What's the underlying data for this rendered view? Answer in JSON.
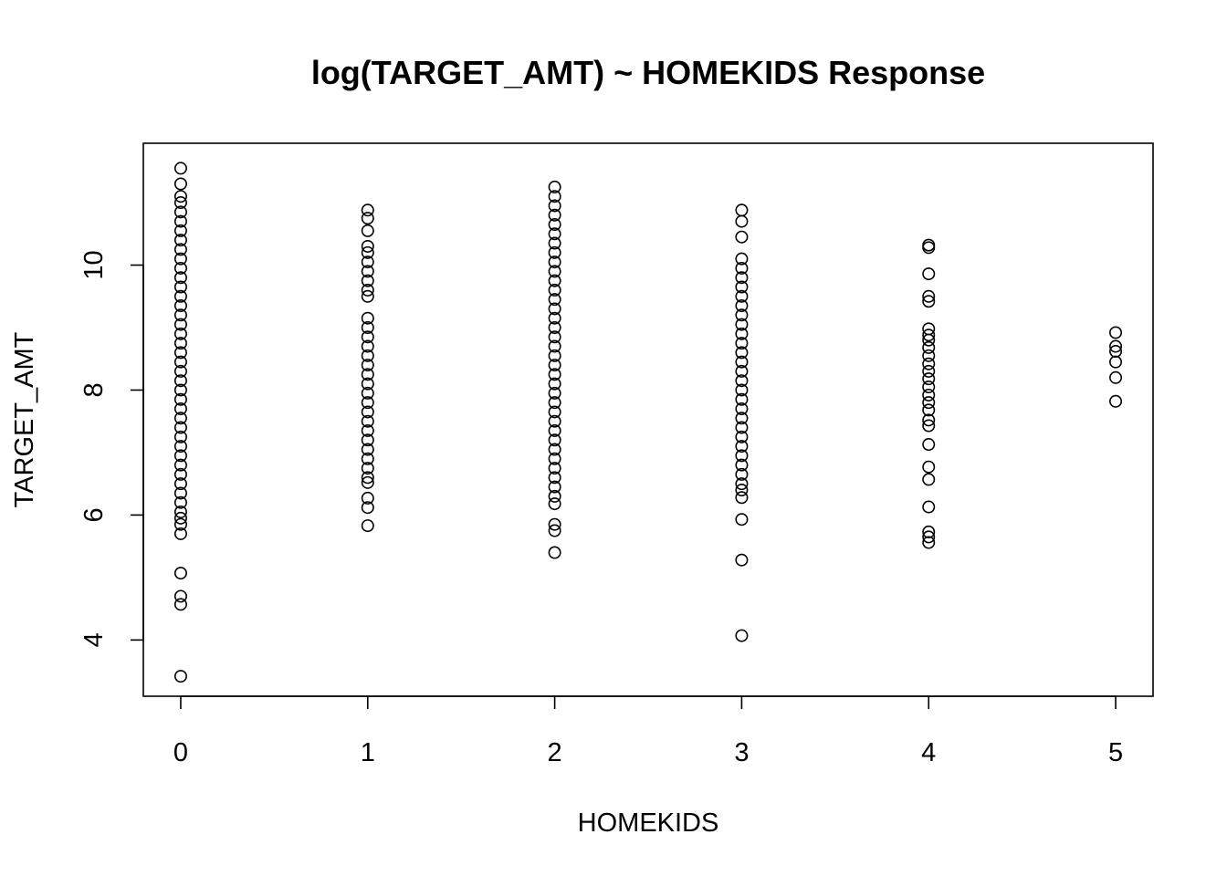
{
  "chart_data": {
    "type": "scatter",
    "title": "log(TARGET_AMT) ~ HOMEKIDS Response",
    "xlabel": "HOMEKIDS",
    "ylabel": "TARGET_AMT",
    "xlim": [
      -0.2,
      5.2
    ],
    "ylim": [
      3.1,
      11.95
    ],
    "xticks": [
      0,
      1,
      2,
      3,
      4,
      5
    ],
    "yticks": [
      4,
      6,
      8,
      10
    ],
    "grid": false,
    "series": [
      {
        "values": [
          {
            "x": 0,
            "y": 11.55
          },
          {
            "x": 0,
            "y": 11.3
          },
          {
            "x": 0,
            "y": 11.1
          },
          {
            "x": 0,
            "y": 11.0
          },
          {
            "x": 0,
            "y": 10.85
          },
          {
            "x": 0,
            "y": 10.7
          },
          {
            "x": 0,
            "y": 10.55
          },
          {
            "x": 0,
            "y": 10.4
          },
          {
            "x": 0,
            "y": 10.25
          },
          {
            "x": 0,
            "y": 10.1
          },
          {
            "x": 0,
            "y": 9.95
          },
          {
            "x": 0,
            "y": 9.8
          },
          {
            "x": 0,
            "y": 9.65
          },
          {
            "x": 0,
            "y": 9.5
          },
          {
            "x": 0,
            "y": 9.35
          },
          {
            "x": 0,
            "y": 9.2
          },
          {
            "x": 0,
            "y": 9.05
          },
          {
            "x": 0,
            "y": 8.9
          },
          {
            "x": 0,
            "y": 8.75
          },
          {
            "x": 0,
            "y": 8.6
          },
          {
            "x": 0,
            "y": 8.45
          },
          {
            "x": 0,
            "y": 8.3
          },
          {
            "x": 0,
            "y": 8.15
          },
          {
            "x": 0,
            "y": 8.0
          },
          {
            "x": 0,
            "y": 7.85
          },
          {
            "x": 0,
            "y": 7.7
          },
          {
            "x": 0,
            "y": 7.55
          },
          {
            "x": 0,
            "y": 7.4
          },
          {
            "x": 0,
            "y": 7.25
          },
          {
            "x": 0,
            "y": 7.1
          },
          {
            "x": 0,
            "y": 6.95
          },
          {
            "x": 0,
            "y": 6.8
          },
          {
            "x": 0,
            "y": 6.65
          },
          {
            "x": 0,
            "y": 6.5
          },
          {
            "x": 0,
            "y": 6.35
          },
          {
            "x": 0,
            "y": 6.2
          },
          {
            "x": 0,
            "y": 6.05
          },
          {
            "x": 0,
            "y": 5.95
          },
          {
            "x": 0,
            "y": 5.85
          },
          {
            "x": 0,
            "y": 5.7
          },
          {
            "x": 0,
            "y": 5.07
          },
          {
            "x": 0,
            "y": 4.7
          },
          {
            "x": 0,
            "y": 4.57
          },
          {
            "x": 0,
            "y": 3.42
          },
          {
            "x": 1,
            "y": 10.88
          },
          {
            "x": 1,
            "y": 10.75
          },
          {
            "x": 1,
            "y": 10.55
          },
          {
            "x": 1,
            "y": 10.3
          },
          {
            "x": 1,
            "y": 10.2
          },
          {
            "x": 1,
            "y": 10.05
          },
          {
            "x": 1,
            "y": 9.9
          },
          {
            "x": 1,
            "y": 9.75
          },
          {
            "x": 1,
            "y": 9.6
          },
          {
            "x": 1,
            "y": 9.5
          },
          {
            "x": 1,
            "y": 9.15
          },
          {
            "x": 1,
            "y": 9.0
          },
          {
            "x": 1,
            "y": 8.85
          },
          {
            "x": 1,
            "y": 8.7
          },
          {
            "x": 1,
            "y": 8.55
          },
          {
            "x": 1,
            "y": 8.4
          },
          {
            "x": 1,
            "y": 8.25
          },
          {
            "x": 1,
            "y": 8.1
          },
          {
            "x": 1,
            "y": 7.95
          },
          {
            "x": 1,
            "y": 7.8
          },
          {
            "x": 1,
            "y": 7.65
          },
          {
            "x": 1,
            "y": 7.5
          },
          {
            "x": 1,
            "y": 7.35
          },
          {
            "x": 1,
            "y": 7.2
          },
          {
            "x": 1,
            "y": 7.05
          },
          {
            "x": 1,
            "y": 6.9
          },
          {
            "x": 1,
            "y": 6.75
          },
          {
            "x": 1,
            "y": 6.6
          },
          {
            "x": 1,
            "y": 6.52
          },
          {
            "x": 1,
            "y": 6.27
          },
          {
            "x": 1,
            "y": 6.12
          },
          {
            "x": 1,
            "y": 5.83
          },
          {
            "x": 2,
            "y": 11.25
          },
          {
            "x": 2,
            "y": 11.1
          },
          {
            "x": 2,
            "y": 10.95
          },
          {
            "x": 2,
            "y": 10.8
          },
          {
            "x": 2,
            "y": 10.65
          },
          {
            "x": 2,
            "y": 10.5
          },
          {
            "x": 2,
            "y": 10.35
          },
          {
            "x": 2,
            "y": 10.2
          },
          {
            "x": 2,
            "y": 10.05
          },
          {
            "x": 2,
            "y": 9.9
          },
          {
            "x": 2,
            "y": 9.75
          },
          {
            "x": 2,
            "y": 9.6
          },
          {
            "x": 2,
            "y": 9.45
          },
          {
            "x": 2,
            "y": 9.3
          },
          {
            "x": 2,
            "y": 9.15
          },
          {
            "x": 2,
            "y": 9.0
          },
          {
            "x": 2,
            "y": 8.85
          },
          {
            "x": 2,
            "y": 8.7
          },
          {
            "x": 2,
            "y": 8.55
          },
          {
            "x": 2,
            "y": 8.4
          },
          {
            "x": 2,
            "y": 8.25
          },
          {
            "x": 2,
            "y": 8.1
          },
          {
            "x": 2,
            "y": 7.95
          },
          {
            "x": 2,
            "y": 7.8
          },
          {
            "x": 2,
            "y": 7.65
          },
          {
            "x": 2,
            "y": 7.5
          },
          {
            "x": 2,
            "y": 7.35
          },
          {
            "x": 2,
            "y": 7.2
          },
          {
            "x": 2,
            "y": 7.05
          },
          {
            "x": 2,
            "y": 6.9
          },
          {
            "x": 2,
            "y": 6.75
          },
          {
            "x": 2,
            "y": 6.6
          },
          {
            "x": 2,
            "y": 6.45
          },
          {
            "x": 2,
            "y": 6.3
          },
          {
            "x": 2,
            "y": 6.18
          },
          {
            "x": 2,
            "y": 5.85
          },
          {
            "x": 2,
            "y": 5.75
          },
          {
            "x": 2,
            "y": 5.4
          },
          {
            "x": 3,
            "y": 10.88
          },
          {
            "x": 3,
            "y": 10.7
          },
          {
            "x": 3,
            "y": 10.45
          },
          {
            "x": 3,
            "y": 10.1
          },
          {
            "x": 3,
            "y": 9.95
          },
          {
            "x": 3,
            "y": 9.8
          },
          {
            "x": 3,
            "y": 9.65
          },
          {
            "x": 3,
            "y": 9.5
          },
          {
            "x": 3,
            "y": 9.35
          },
          {
            "x": 3,
            "y": 9.2
          },
          {
            "x": 3,
            "y": 9.05
          },
          {
            "x": 3,
            "y": 8.9
          },
          {
            "x": 3,
            "y": 8.75
          },
          {
            "x": 3,
            "y": 8.6
          },
          {
            "x": 3,
            "y": 8.45
          },
          {
            "x": 3,
            "y": 8.3
          },
          {
            "x": 3,
            "y": 8.15
          },
          {
            "x": 3,
            "y": 8.0
          },
          {
            "x": 3,
            "y": 7.85
          },
          {
            "x": 3,
            "y": 7.7
          },
          {
            "x": 3,
            "y": 7.55
          },
          {
            "x": 3,
            "y": 7.4
          },
          {
            "x": 3,
            "y": 7.25
          },
          {
            "x": 3,
            "y": 7.1
          },
          {
            "x": 3,
            "y": 6.95
          },
          {
            "x": 3,
            "y": 6.8
          },
          {
            "x": 3,
            "y": 6.65
          },
          {
            "x": 3,
            "y": 6.5
          },
          {
            "x": 3,
            "y": 6.4
          },
          {
            "x": 3,
            "y": 6.28
          },
          {
            "x": 3,
            "y": 5.93
          },
          {
            "x": 3,
            "y": 5.28
          },
          {
            "x": 3,
            "y": 4.07
          },
          {
            "x": 4,
            "y": 10.32
          },
          {
            "x": 4,
            "y": 10.28
          },
          {
            "x": 4,
            "y": 9.86
          },
          {
            "x": 4,
            "y": 9.5
          },
          {
            "x": 4,
            "y": 9.42
          },
          {
            "x": 4,
            "y": 8.98
          },
          {
            "x": 4,
            "y": 8.88
          },
          {
            "x": 4,
            "y": 8.8
          },
          {
            "x": 4,
            "y": 8.68
          },
          {
            "x": 4,
            "y": 8.55
          },
          {
            "x": 4,
            "y": 8.42
          },
          {
            "x": 4,
            "y": 8.3
          },
          {
            "x": 4,
            "y": 8.18
          },
          {
            "x": 4,
            "y": 8.05
          },
          {
            "x": 4,
            "y": 7.92
          },
          {
            "x": 4,
            "y": 7.8
          },
          {
            "x": 4,
            "y": 7.68
          },
          {
            "x": 4,
            "y": 7.52
          },
          {
            "x": 4,
            "y": 7.43
          },
          {
            "x": 4,
            "y": 7.13
          },
          {
            "x": 4,
            "y": 6.77
          },
          {
            "x": 4,
            "y": 6.57
          },
          {
            "x": 4,
            "y": 6.13
          },
          {
            "x": 4,
            "y": 5.73
          },
          {
            "x": 4,
            "y": 5.65
          },
          {
            "x": 4,
            "y": 5.56
          },
          {
            "x": 5,
            "y": 8.92
          },
          {
            "x": 5,
            "y": 8.7
          },
          {
            "x": 5,
            "y": 8.62
          },
          {
            "x": 5,
            "y": 8.45
          },
          {
            "x": 5,
            "y": 8.2
          },
          {
            "x": 5,
            "y": 7.82
          }
        ]
      }
    ]
  }
}
